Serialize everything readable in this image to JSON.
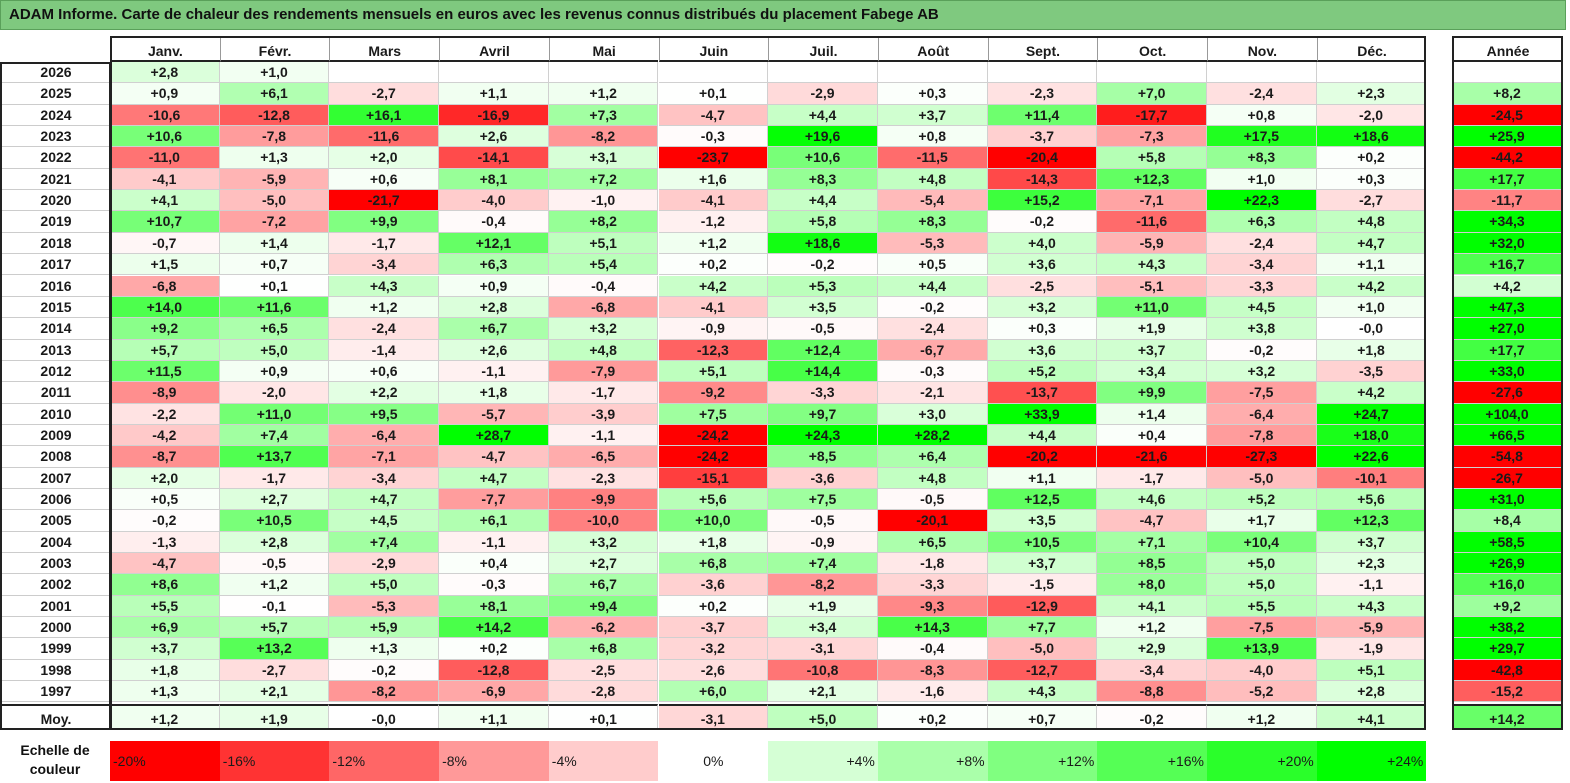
{
  "title": "ADAM Informe. Carte de chaleur des rendements mensuels en euros avec les revenus connus distribués du placement Fabege AB",
  "months": [
    "Janv.",
    "Févr.",
    "Mars",
    "Avril",
    "Mai",
    "Juin",
    "Juil.",
    "Août",
    "Sept.",
    "Oct.",
    "Nov.",
    "Déc."
  ],
  "year_header": "Année",
  "rows": [
    {
      "year": "2026",
      "months": [
        "+2,8",
        "+1,0",
        "",
        "",
        "",
        "",
        "",
        "",
        "",
        "",
        "",
        ""
      ],
      "annual": ""
    },
    {
      "year": "2025",
      "months": [
        "+0,9",
        "+6,1",
        "-2,7",
        "+1,1",
        "+1,2",
        "+0,1",
        "-2,9",
        "+0,3",
        "-2,3",
        "+7,0",
        "-2,4",
        "+2,3"
      ],
      "annual": "+8,2"
    },
    {
      "year": "2024",
      "months": [
        "-10,6",
        "-12,8",
        "+16,1",
        "-16,9",
        "+7,3",
        "-4,7",
        "+4,4",
        "+3,7",
        "+11,4",
        "-17,7",
        "+0,8",
        "-2,0"
      ],
      "annual": "-24,5"
    },
    {
      "year": "2023",
      "months": [
        "+10,6",
        "-7,8",
        "-11,6",
        "+2,6",
        "-8,2",
        "-0,3",
        "+19,6",
        "+0,8",
        "-3,7",
        "-7,3",
        "+17,5",
        "+18,6"
      ],
      "annual": "+25,9"
    },
    {
      "year": "2022",
      "months": [
        "-11,0",
        "+1,3",
        "+2,0",
        "-14,1",
        "+3,1",
        "-23,7",
        "+10,6",
        "-11,5",
        "-20,4",
        "+5,8",
        "+8,3",
        "+0,2"
      ],
      "annual": "-44,2"
    },
    {
      "year": "2021",
      "months": [
        "-4,1",
        "-5,9",
        "+0,6",
        "+8,1",
        "+7,2",
        "+1,6",
        "+8,3",
        "+4,8",
        "-14,3",
        "+12,3",
        "+1,0",
        "+0,3"
      ],
      "annual": "+17,7"
    },
    {
      "year": "2020",
      "months": [
        "+4,1",
        "-5,0",
        "-21,7",
        "-4,0",
        "-1,0",
        "-4,1",
        "+4,4",
        "-5,4",
        "+15,2",
        "-7,1",
        "+22,3",
        "-2,7"
      ],
      "annual": "-11,7"
    },
    {
      "year": "2019",
      "months": [
        "+10,7",
        "-7,2",
        "+9,9",
        "-0,4",
        "+8,2",
        "-1,2",
        "+5,8",
        "+8,3",
        "-0,2",
        "-11,6",
        "+6,3",
        "+4,8"
      ],
      "annual": "+34,3"
    },
    {
      "year": "2018",
      "months": [
        "-0,7",
        "+1,4",
        "-1,7",
        "+12,1",
        "+5,1",
        "+1,2",
        "+18,6",
        "-5,3",
        "+4,0",
        "-5,9",
        "-2,4",
        "+4,7"
      ],
      "annual": "+32,0"
    },
    {
      "year": "2017",
      "months": [
        "+1,5",
        "+0,7",
        "-3,4",
        "+6,3",
        "+5,4",
        "+0,2",
        "-0,2",
        "+0,5",
        "+3,6",
        "+4,3",
        "-3,4",
        "+1,1"
      ],
      "annual": "+16,7"
    },
    {
      "year": "2016",
      "months": [
        "-6,8",
        "+0,1",
        "+4,3",
        "+0,9",
        "-0,4",
        "+4,2",
        "+5,3",
        "+4,4",
        "-2,5",
        "-5,1",
        "-3,3",
        "+4,2"
      ],
      "annual": "+4,2"
    },
    {
      "year": "2015",
      "months": [
        "+14,0",
        "+11,6",
        "+1,2",
        "+2,8",
        "-6,8",
        "-4,1",
        "+3,5",
        "-0,2",
        "+3,2",
        "+11,0",
        "+4,5",
        "+1,0"
      ],
      "annual": "+47,3"
    },
    {
      "year": "2014",
      "months": [
        "+9,2",
        "+6,5",
        "-2,4",
        "+6,7",
        "+3,2",
        "-0,9",
        "-0,5",
        "-2,4",
        "+0,3",
        "+1,9",
        "+3,8",
        "-0,0"
      ],
      "annual": "+27,0"
    },
    {
      "year": "2013",
      "months": [
        "+5,7",
        "+5,0",
        "-1,4",
        "+2,6",
        "+4,8",
        "-12,3",
        "+12,4",
        "-6,7",
        "+3,6",
        "+3,7",
        "-0,2",
        "+1,8"
      ],
      "annual": "+17,7"
    },
    {
      "year": "2012",
      "months": [
        "+11,5",
        "+0,9",
        "+0,6",
        "-1,1",
        "-7,9",
        "+5,1",
        "+14,4",
        "-0,3",
        "+5,2",
        "+3,4",
        "+3,2",
        "-3,5"
      ],
      "annual": "+33,0"
    },
    {
      "year": "2011",
      "months": [
        "-8,9",
        "-2,0",
        "+2,2",
        "+1,8",
        "-1,7",
        "-9,2",
        "-3,3",
        "-2,1",
        "-13,7",
        "+9,9",
        "-7,5",
        "+4,2"
      ],
      "annual": "-27,6"
    },
    {
      "year": "2010",
      "months": [
        "-2,2",
        "+11,0",
        "+9,5",
        "-5,7",
        "-3,9",
        "+7,5",
        "+9,7",
        "+3,0",
        "+33,9",
        "+1,4",
        "-6,4",
        "+24,7"
      ],
      "annual": "+104,0"
    },
    {
      "year": "2009",
      "months": [
        "-4,2",
        "+7,4",
        "-6,4",
        "+28,7",
        "-1,1",
        "-24,2",
        "+24,3",
        "+28,2",
        "+4,4",
        "+0,4",
        "-7,8",
        "+18,0"
      ],
      "annual": "+66,5"
    },
    {
      "year": "2008",
      "months": [
        "-8,7",
        "+13,7",
        "-7,1",
        "-4,7",
        "-6,5",
        "-24,2",
        "+8,5",
        "+6,4",
        "-20,2",
        "-21,6",
        "-27,3",
        "+22,6"
      ],
      "annual": "-54,8"
    },
    {
      "year": "2007",
      "months": [
        "+2,0",
        "-1,7",
        "-3,4",
        "+4,7",
        "-2,3",
        "-15,1",
        "-3,6",
        "+4,8",
        "+1,1",
        "-1,7",
        "-5,0",
        "-10,1"
      ],
      "annual": "-26,7"
    },
    {
      "year": "2006",
      "months": [
        "+0,5",
        "+2,7",
        "+4,7",
        "-7,7",
        "-9,9",
        "+5,6",
        "+7,5",
        "-0,5",
        "+12,5",
        "+4,6",
        "+5,2",
        "+5,6"
      ],
      "annual": "+31,0"
    },
    {
      "year": "2005",
      "months": [
        "-0,2",
        "+10,5",
        "+4,5",
        "+6,1",
        "-10,0",
        "+10,0",
        "-0,5",
        "-20,1",
        "+3,5",
        "-4,7",
        "+1,7",
        "+12,3"
      ],
      "annual": "+8,4"
    },
    {
      "year": "2004",
      "months": [
        "-1,3",
        "+2,8",
        "+7,4",
        "-1,1",
        "+3,2",
        "+1,8",
        "-0,9",
        "+6,5",
        "+10,5",
        "+7,1",
        "+10,4",
        "+3,7"
      ],
      "annual": "+58,5"
    },
    {
      "year": "2003",
      "months": [
        "-4,7",
        "-0,5",
        "-2,9",
        "+0,4",
        "+2,7",
        "+6,8",
        "+7,4",
        "-1,8",
        "+3,7",
        "+8,5",
        "+5,0",
        "+2,3"
      ],
      "annual": "+26,9"
    },
    {
      "year": "2002",
      "months": [
        "+8,6",
        "+1,2",
        "+5,0",
        "-0,3",
        "+6,7",
        "-3,6",
        "-8,2",
        "-3,3",
        "-1,5",
        "+8,0",
        "+5,0",
        "-1,1"
      ],
      "annual": "+16,0"
    },
    {
      "year": "2001",
      "months": [
        "+5,5",
        "-0,1",
        "-5,3",
        "+8,1",
        "+9,4",
        "+0,2",
        "+1,9",
        "-9,3",
        "-12,9",
        "+4,1",
        "+5,5",
        "+4,3"
      ],
      "annual": "+9,2"
    },
    {
      "year": "2000",
      "months": [
        "+6,9",
        "+5,7",
        "+5,9",
        "+14,2",
        "-6,2",
        "-3,7",
        "+3,4",
        "+14,3",
        "+7,7",
        "+1,2",
        "-7,5",
        "-5,9"
      ],
      "annual": "+38,2"
    },
    {
      "year": "1999",
      "months": [
        "+3,7",
        "+13,2",
        "+1,3",
        "+0,2",
        "+6,8",
        "-3,2",
        "-3,1",
        "-0,4",
        "-5,0",
        "+2,9",
        "+13,9",
        "-1,9"
      ],
      "annual": "+29,7"
    },
    {
      "year": "1998",
      "months": [
        "+1,8",
        "-2,7",
        "-0,2",
        "-12,8",
        "-2,5",
        "-2,6",
        "-10,8",
        "-8,3",
        "-12,7",
        "-3,4",
        "-4,0",
        "+5,1"
      ],
      "annual": "-42,8"
    },
    {
      "year": "1997",
      "months": [
        "+1,3",
        "+2,1",
        "-8,2",
        "-6,9",
        "-2,8",
        "+6,0",
        "+2,1",
        "-1,6",
        "+4,3",
        "-8,8",
        "-5,2",
        "+2,8"
      ],
      "annual": "-15,2"
    }
  ],
  "average": {
    "label": "Moy.",
    "months": [
      "+1,2",
      "+1,9",
      "-0,0",
      "+1,1",
      "+0,1",
      "-3,1",
      "+5,0",
      "+0,2",
      "+0,7",
      "-0,2",
      "+1,2",
      "+4,1"
    ],
    "annual": "+14,2"
  },
  "scale": {
    "label": "Echelle de couleur",
    "steps": [
      "-20%",
      "-16%",
      "-12%",
      "-8%",
      "-4%",
      "0%",
      "+4%",
      "+8%",
      "+12%",
      "+16%",
      "+20%",
      "+24%"
    ]
  },
  "colors": {
    "max_red": "#ff0000",
    "max_green": "#00ff00",
    "neutral": "#ffffff",
    "title_bar": "#7fc97f"
  },
  "chart_data": {
    "type": "heatmap",
    "title": "ADAM Informe. Carte de chaleur des rendements mensuels en euros avec les revenus connus distribués du placement Fabege AB",
    "x": [
      "Janv.",
      "Févr.",
      "Mars",
      "Avril",
      "Mai",
      "Juin",
      "Juil.",
      "Août",
      "Sept.",
      "Oct.",
      "Nov.",
      "Déc.",
      "Année"
    ],
    "y": [
      "2026",
      "2025",
      "2024",
      "2023",
      "2022",
      "2021",
      "2020",
      "2019",
      "2018",
      "2017",
      "2016",
      "2015",
      "2014",
      "2013",
      "2012",
      "2011",
      "2010",
      "2009",
      "2008",
      "2007",
      "2006",
      "2005",
      "2004",
      "2003",
      "2002",
      "2001",
      "2000",
      "1999",
      "1998",
      "1997",
      "Moy."
    ],
    "color_scale": {
      "min": -20,
      "max": 24,
      "step": 4,
      "unit": "%"
    }
  }
}
